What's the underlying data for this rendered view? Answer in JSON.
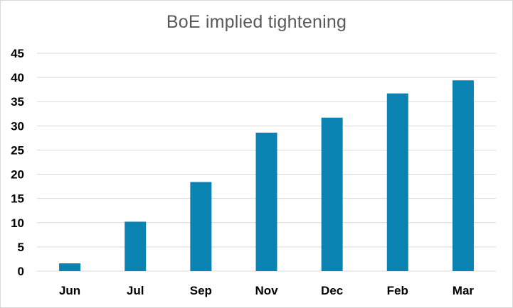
{
  "chart_data": {
    "type": "bar",
    "title": "BoE implied tightening",
    "xlabel": "",
    "ylabel": "",
    "categories": [
      "Jun",
      "Jul",
      "Sep",
      "Nov",
      "Dec",
      "Feb",
      "Mar"
    ],
    "values": [
      1.6,
      10.2,
      18.4,
      28.6,
      31.7,
      36.7,
      39.4
    ],
    "ylim": [
      0,
      45
    ],
    "yticks": [
      0,
      5,
      10,
      15,
      20,
      25,
      30,
      35,
      40,
      45
    ],
    "grid": true,
    "legend": "none",
    "colors": {
      "bar": "#0b83b2",
      "grid": "#d9d9d9",
      "title": "#595959"
    }
  }
}
